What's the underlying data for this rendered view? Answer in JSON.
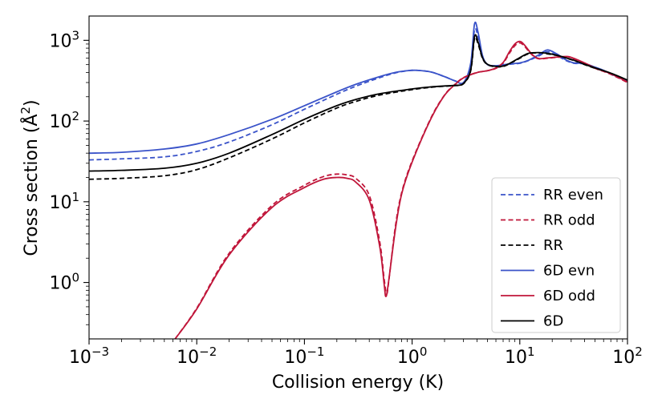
{
  "chart_data": {
    "type": "line",
    "xscale": "log",
    "yscale": "log",
    "xlabel": "Collision energy (K)",
    "ylabel": "Cross section (Å²)",
    "ylabel_base": "Cross section (Å",
    "ylabel_sup": "2",
    "ylabel_end": ")",
    "xlim": [
      0.001,
      100
    ],
    "ylim": [
      0.2,
      2000
    ],
    "x_ticks": [
      {
        "value": 0.001,
        "base": "10",
        "exp": "−3"
      },
      {
        "value": 0.01,
        "base": "10",
        "exp": "−2"
      },
      {
        "value": 0.1,
        "base": "10",
        "exp": "−1"
      },
      {
        "value": 1,
        "base": "10",
        "exp": "0"
      },
      {
        "value": 10,
        "base": "10",
        "exp": "1"
      },
      {
        "value": 100,
        "base": "10",
        "exp": "2"
      }
    ],
    "y_ticks": [
      {
        "value": 1,
        "base": "10",
        "exp": "0"
      },
      {
        "value": 10,
        "base": "10",
        "exp": "1"
      },
      {
        "value": 100,
        "base": "10",
        "exp": "2"
      },
      {
        "value": 1000,
        "base": "10",
        "exp": "3"
      }
    ],
    "legend_position": "lower-right",
    "series": [
      {
        "name": "RR even",
        "color": "#3a53c9",
        "dash": true,
        "points": [
          [
            0.001,
            33
          ],
          [
            0.002,
            34
          ],
          [
            0.005,
            36
          ],
          [
            0.01,
            42
          ],
          [
            0.02,
            55
          ],
          [
            0.05,
            90
          ],
          [
            0.1,
            140
          ],
          [
            0.2,
            215
          ],
          [
            0.3,
            270
          ],
          [
            0.5,
            345
          ],
          [
            0.7,
            395
          ],
          [
            0.9,
            420
          ],
          [
            1.1,
            425
          ],
          [
            1.5,
            405
          ],
          [
            2,
            355
          ],
          [
            2.5,
            315
          ],
          [
            3,
            300
          ],
          [
            3.5,
            500
          ],
          [
            3.8,
            1350
          ],
          [
            4.1,
            1100
          ],
          [
            4.5,
            620
          ],
          [
            5,
            500
          ],
          [
            6,
            480
          ],
          [
            8,
            505
          ],
          [
            10,
            520
          ],
          [
            12,
            560
          ],
          [
            15,
            640
          ],
          [
            18,
            720
          ],
          [
            22,
            650
          ],
          [
            27,
            560
          ],
          [
            32,
            520
          ],
          [
            40,
            510
          ],
          [
            50,
            460
          ],
          [
            60,
            420
          ],
          [
            80,
            350
          ],
          [
            100,
            310
          ]
        ]
      },
      {
        "name": "RR odd",
        "color": "#c0163a",
        "dash": true,
        "points": [
          [
            0.0063,
            0.2
          ],
          [
            0.01,
            0.48
          ],
          [
            0.02,
            2.3
          ],
          [
            0.05,
            9
          ],
          [
            0.1,
            16
          ],
          [
            0.15,
            20.5
          ],
          [
            0.2,
            22
          ],
          [
            0.25,
            21.5
          ],
          [
            0.3,
            19.5
          ],
          [
            0.4,
            12
          ],
          [
            0.5,
            3.2
          ],
          [
            0.55,
            1.1
          ],
          [
            0.58,
            0.72
          ],
          [
            0.61,
            1.1
          ],
          [
            0.7,
            5
          ],
          [
            0.8,
            13
          ],
          [
            1,
            32
          ],
          [
            1.5,
            110
          ],
          [
            2,
            210
          ],
          [
            2.5,
            285
          ],
          [
            3,
            345
          ],
          [
            4,
            400
          ],
          [
            5,
            420
          ],
          [
            6,
            450
          ],
          [
            7,
            520
          ],
          [
            8,
            690
          ],
          [
            9,
            860
          ],
          [
            10,
            930
          ],
          [
            11,
            850
          ],
          [
            13,
            660
          ],
          [
            15,
            590
          ],
          [
            18,
            600
          ],
          [
            22,
            615
          ],
          [
            27,
            625
          ],
          [
            30,
            610
          ],
          [
            40,
            520
          ],
          [
            50,
            450
          ],
          [
            70,
            380
          ],
          [
            100,
            300
          ]
        ]
      },
      {
        "name": "RR",
        "color": "#000000",
        "dash": true,
        "points": [
          [
            0.001,
            19
          ],
          [
            0.002,
            19.5
          ],
          [
            0.005,
            21
          ],
          [
            0.01,
            25
          ],
          [
            0.02,
            35
          ],
          [
            0.05,
            60
          ],
          [
            0.1,
            95
          ],
          [
            0.2,
            145
          ],
          [
            0.3,
            175
          ],
          [
            0.5,
            210
          ],
          [
            1,
            245
          ],
          [
            1.5,
            262
          ],
          [
            2,
            270
          ],
          [
            2.5,
            275
          ],
          [
            3,
            290
          ],
          [
            3.5,
            420
          ],
          [
            3.8,
            1050
          ],
          [
            4.1,
            900
          ],
          [
            4.5,
            600
          ],
          [
            5,
            500
          ],
          [
            6,
            470
          ],
          [
            7,
            475
          ],
          [
            8,
            510
          ],
          [
            10,
            600
          ],
          [
            12,
            680
          ],
          [
            15,
            700
          ],
          [
            18,
            680
          ],
          [
            22,
            650
          ],
          [
            27,
            600
          ],
          [
            32,
            560
          ],
          [
            40,
            500
          ],
          [
            50,
            450
          ],
          [
            70,
            390
          ],
          [
            100,
            320
          ]
        ]
      },
      {
        "name": "6D evn",
        "color": "#3a53c9",
        "dash": false,
        "points": [
          [
            0.001,
            40
          ],
          [
            0.002,
            41
          ],
          [
            0.005,
            45
          ],
          [
            0.01,
            52
          ],
          [
            0.02,
            68
          ],
          [
            0.05,
            105
          ],
          [
            0.1,
            155
          ],
          [
            0.2,
            230
          ],
          [
            0.3,
            285
          ],
          [
            0.5,
            355
          ],
          [
            0.7,
            400
          ],
          [
            0.9,
            420
          ],
          [
            1.1,
            425
          ],
          [
            1.5,
            405
          ],
          [
            2,
            355
          ],
          [
            2.5,
            315
          ],
          [
            3,
            300
          ],
          [
            3.5,
            520
          ],
          [
            3.8,
            1600
          ],
          [
            4.1,
            1250
          ],
          [
            4.5,
            650
          ],
          [
            5,
            505
          ],
          [
            6,
            485
          ],
          [
            8,
            510
          ],
          [
            10,
            525
          ],
          [
            12,
            565
          ],
          [
            15,
            660
          ],
          [
            18,
            760
          ],
          [
            22,
            680
          ],
          [
            27,
            570
          ],
          [
            32,
            525
          ],
          [
            40,
            515
          ],
          [
            50,
            465
          ],
          [
            60,
            425
          ],
          [
            80,
            355
          ],
          [
            100,
            315
          ]
        ]
      },
      {
        "name": "6D odd",
        "color": "#c0163a",
        "dash": false,
        "points": [
          [
            0.0063,
            0.2
          ],
          [
            0.01,
            0.47
          ],
          [
            0.02,
            2.2
          ],
          [
            0.05,
            8.5
          ],
          [
            0.1,
            15
          ],
          [
            0.15,
            19
          ],
          [
            0.2,
            20
          ],
          [
            0.25,
            19.5
          ],
          [
            0.3,
            17.5
          ],
          [
            0.4,
            10.5
          ],
          [
            0.5,
            2.8
          ],
          [
            0.55,
            0.95
          ],
          [
            0.57,
            0.67
          ],
          [
            0.6,
            0.95
          ],
          [
            0.7,
            4.6
          ],
          [
            0.8,
            12.5
          ],
          [
            1,
            31
          ],
          [
            1.5,
            108
          ],
          [
            2,
            208
          ],
          [
            2.5,
            283
          ],
          [
            3,
            343
          ],
          [
            4,
            398
          ],
          [
            5,
            420
          ],
          [
            6,
            455
          ],
          [
            7,
            530
          ],
          [
            8,
            720
          ],
          [
            9,
            900
          ],
          [
            10,
            970
          ],
          [
            11,
            880
          ],
          [
            13,
            670
          ],
          [
            15,
            595
          ],
          [
            18,
            605
          ],
          [
            22,
            620
          ],
          [
            27,
            630
          ],
          [
            30,
            615
          ],
          [
            40,
            525
          ],
          [
            50,
            455
          ],
          [
            70,
            385
          ],
          [
            100,
            305
          ]
        ]
      },
      {
        "name": "6D",
        "color": "#000000",
        "dash": false,
        "points": [
          [
            0.001,
            24
          ],
          [
            0.002,
            24.5
          ],
          [
            0.005,
            26
          ],
          [
            0.01,
            30
          ],
          [
            0.02,
            40
          ],
          [
            0.05,
            68
          ],
          [
            0.1,
            105
          ],
          [
            0.2,
            155
          ],
          [
            0.3,
            185
          ],
          [
            0.5,
            218
          ],
          [
            1,
            250
          ],
          [
            1.5,
            265
          ],
          [
            2,
            272
          ],
          [
            2.5,
            277
          ],
          [
            3,
            292
          ],
          [
            3.5,
            430
          ],
          [
            3.8,
            1120
          ],
          [
            4.1,
            950
          ],
          [
            4.5,
            610
          ],
          [
            5,
            505
          ],
          [
            6,
            475
          ],
          [
            7,
            480
          ],
          [
            8,
            515
          ],
          [
            10,
            610
          ],
          [
            12,
            690
          ],
          [
            15,
            705
          ],
          [
            18,
            690
          ],
          [
            22,
            655
          ],
          [
            27,
            605
          ],
          [
            32,
            565
          ],
          [
            40,
            505
          ],
          [
            50,
            455
          ],
          [
            70,
            392
          ],
          [
            100,
            322
          ]
        ]
      }
    ]
  }
}
